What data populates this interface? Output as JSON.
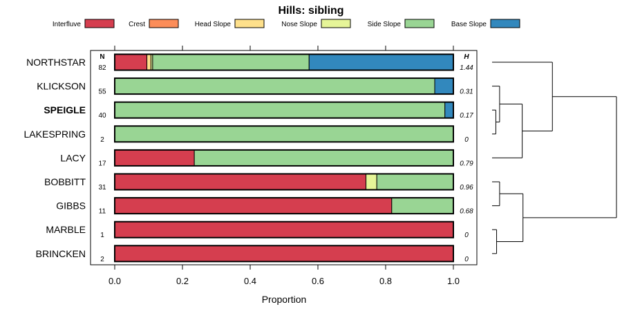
{
  "chart_data": {
    "type": "bar",
    "orientation": "horizontal",
    "stacked": true,
    "title": "Hills: sibling",
    "xlabel": "Proportion",
    "ylabel": "",
    "xlim": [
      0,
      1
    ],
    "xticks": [
      "0.0",
      "0.2",
      "0.4",
      "0.6",
      "0.8",
      "1.0"
    ],
    "n_header": "N",
    "h_header": "H",
    "legend": [
      {
        "name": "Interfluve",
        "color": "#D53E4F"
      },
      {
        "name": "Crest",
        "color": "#FC8D59"
      },
      {
        "name": "Head Slope",
        "color": "#FEE08B"
      },
      {
        "name": "Nose Slope",
        "color": "#E6F598"
      },
      {
        "name": "Side Slope",
        "color": "#99D594"
      },
      {
        "name": "Base Slope",
        "color": "#3288BD"
      }
    ],
    "categories": [
      "NORTHSTAR",
      "KLICKSON",
      "SPEIGLE",
      "LAKESPRING",
      "LACY",
      "BOBBITT",
      "GIBBS",
      "MARBLE",
      "BRINCKEN"
    ],
    "highlight": "SPEIGLE",
    "n": [
      "82",
      "55",
      "40",
      "2",
      "17",
      "31",
      "11",
      "1",
      "2"
    ],
    "h": [
      "1.44",
      "0.31",
      "0.17",
      "0",
      "0.79",
      "0.96",
      "0.68",
      "0",
      "0"
    ],
    "series": [
      {
        "name": "Interfluve",
        "values": [
          0.095,
          0,
          0,
          0,
          0.235,
          0.742,
          0.818,
          1,
          1
        ]
      },
      {
        "name": "Crest",
        "values": [
          0,
          0,
          0,
          0,
          0,
          0,
          0,
          0,
          0
        ]
      },
      {
        "name": "Head Slope",
        "values": [
          0.012,
          0,
          0,
          0,
          0,
          0,
          0,
          0,
          0
        ]
      },
      {
        "name": "Nose Slope",
        "values": [
          0.005,
          0,
          0,
          0,
          0,
          0.032,
          0,
          0,
          0
        ]
      },
      {
        "name": "Side Slope",
        "values": [
          0.462,
          0.945,
          0.975,
          1,
          0.765,
          0.226,
          0.182,
          0,
          0
        ]
      },
      {
        "name": "Base Slope",
        "values": [
          0.426,
          0.055,
          0.025,
          0,
          0,
          0,
          0,
          0,
          0
        ]
      }
    ],
    "dendrogram": {
      "leaves": [
        "NORTHSTAR",
        "KLICKSON",
        "SPEIGLE",
        "LAKESPRING",
        "LACY",
        "BOBBITT",
        "GIBBS",
        "MARBLE",
        "BRINCKEN"
      ],
      "merges": [
        {
          "id": "a",
          "children": [
            "SPEIGLE",
            "LAKESPRING"
          ],
          "height": 0.05
        },
        {
          "id": "b",
          "children": [
            "KLICKSON",
            "a"
          ],
          "height": 0.1
        },
        {
          "id": "c",
          "children": [
            "b",
            "LACY"
          ],
          "height": 0.4
        },
        {
          "id": "d",
          "children": [
            "NORTHSTAR",
            "c"
          ],
          "height": 0.8
        },
        {
          "id": "e",
          "children": [
            "BOBBITT",
            "GIBBS"
          ],
          "height": 0.1
        },
        {
          "id": "f",
          "children": [
            "MARBLE",
            "BRINCKEN"
          ],
          "height": 0.06
        },
        {
          "id": "g",
          "children": [
            "e",
            "f"
          ],
          "height": 0.41
        },
        {
          "id": "root",
          "children": [
            "d",
            "g"
          ],
          "height": 1.65
        }
      ]
    }
  }
}
